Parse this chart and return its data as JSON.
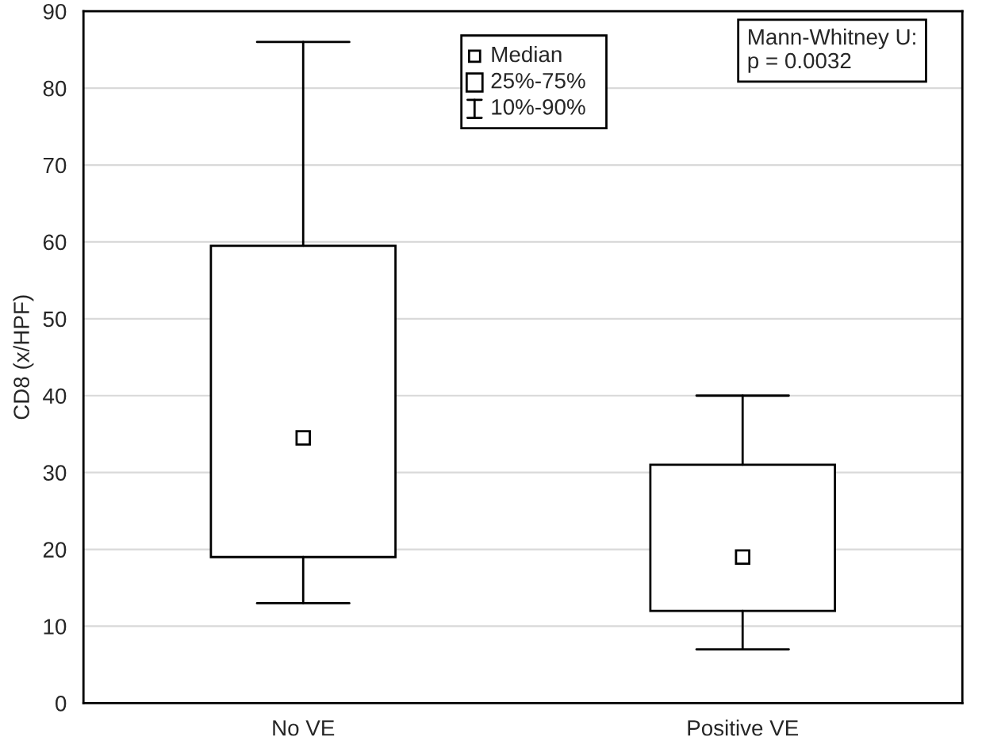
{
  "chart_data": {
    "type": "box",
    "ylabel": "CD8 (x/HPF)",
    "categories": [
      "No VE",
      "Positive VE"
    ],
    "boxes": [
      {
        "low": 13,
        "q1": 19,
        "median": 34.5,
        "q3": 59.5,
        "high": 86
      },
      {
        "low": 7,
        "q1": 12,
        "median": 19,
        "q3": 31,
        "high": 40
      }
    ],
    "ylim": [
      0,
      90
    ],
    "yticks": [
      0,
      10,
      20,
      30,
      40,
      50,
      60,
      70,
      80,
      90
    ],
    "grid": "y",
    "marker": "square",
    "annotations": [
      "Median",
      "25%-75%",
      "10%-90%",
      "Mann-Whitney U:\np = 0.0032"
    ]
  }
}
